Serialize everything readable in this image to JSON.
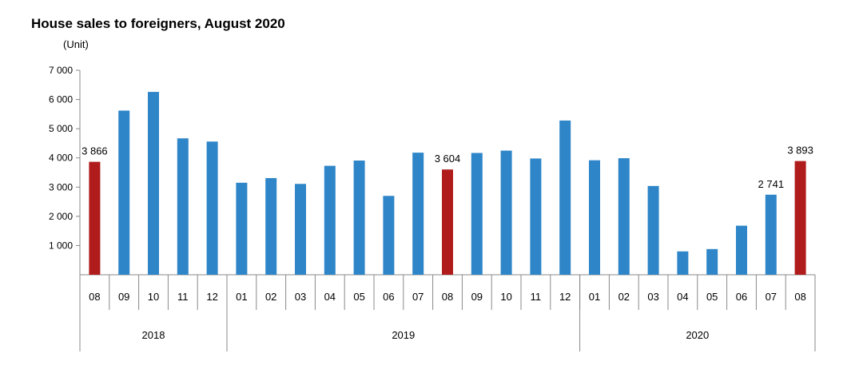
{
  "title": "House sales to foreigners, August 2020",
  "unit_label": "(Unit)",
  "chart_data": {
    "type": "bar",
    "title": "House sales to foreigners, August 2020",
    "ylabel": "(Unit)",
    "ylim": [
      0,
      7000
    ],
    "yticks": [
      {
        "value": 1000,
        "label": "1 000"
      },
      {
        "value": 2000,
        "label": "2 000"
      },
      {
        "value": 3000,
        "label": "3 000"
      },
      {
        "value": 4000,
        "label": "4 000"
      },
      {
        "value": 5000,
        "label": "5 000"
      },
      {
        "value": 6000,
        "label": "6 000"
      },
      {
        "value": 7000,
        "label": "7 000"
      }
    ],
    "categories": [
      "08",
      "09",
      "10",
      "11",
      "12",
      "01",
      "02",
      "03",
      "04",
      "05",
      "06",
      "07",
      "08",
      "09",
      "10",
      "11",
      "12",
      "01",
      "02",
      "03",
      "04",
      "05",
      "06",
      "07",
      "08"
    ],
    "values": [
      3866,
      5620,
      6260,
      4670,
      4560,
      3150,
      3310,
      3110,
      3730,
      3910,
      2700,
      4180,
      3604,
      4170,
      4250,
      3980,
      5280,
      3920,
      3990,
      3040,
      800,
      880,
      1680,
      2741,
      3893
    ],
    "highlight": [
      true,
      false,
      false,
      false,
      false,
      false,
      false,
      false,
      false,
      false,
      false,
      false,
      true,
      false,
      false,
      false,
      false,
      false,
      false,
      false,
      false,
      false,
      false,
      false,
      true
    ],
    "data_labels": [
      {
        "index": 0,
        "text": "3 866"
      },
      {
        "index": 12,
        "text": "3 604"
      },
      {
        "index": 23,
        "text": "2 741"
      },
      {
        "index": 24,
        "text": "3 893"
      }
    ],
    "years": [
      {
        "label": "2018",
        "start": 0,
        "end": 4
      },
      {
        "label": "2019",
        "start": 5,
        "end": 16
      },
      {
        "label": "2020",
        "start": 17,
        "end": 24
      }
    ],
    "colors": {
      "normal": "#2e86c8",
      "highlight": "#b01b1b"
    },
    "grid": false,
    "legend": "none"
  }
}
